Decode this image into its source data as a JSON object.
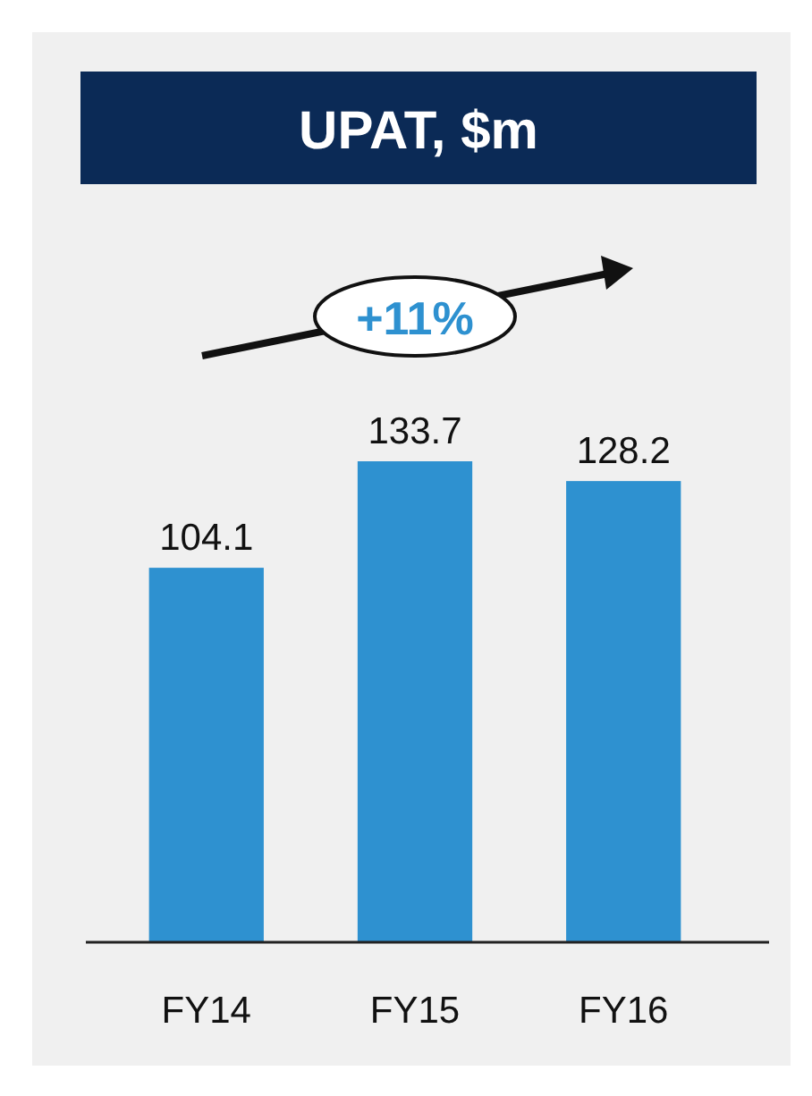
{
  "chart_data": {
    "type": "bar",
    "title": "UPAT, $m",
    "categories": [
      "FY14",
      "FY15",
      "FY16"
    ],
    "values": [
      104.1,
      133.7,
      128.2
    ],
    "color": "#2e91d0",
    "data_labels": true,
    "annotations": [
      "+11%"
    ]
  }
}
